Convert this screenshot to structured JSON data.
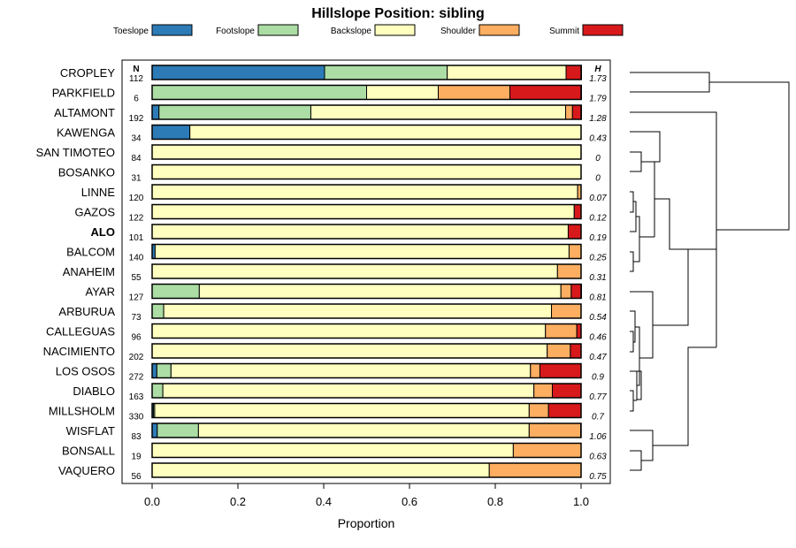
{
  "chart_data": {
    "type": "bar",
    "stacked": true,
    "orientation": "horizontal",
    "title": "Hillslope Position: sibling",
    "xlabel": "Proportion",
    "ylabel": "",
    "xlim": [
      0,
      1
    ],
    "xticks": [
      "0.0",
      "0.2",
      "0.4",
      "0.6",
      "0.8",
      "1.0"
    ],
    "xtick_values": [
      0,
      0.2,
      0.4,
      0.6,
      0.8,
      1.0
    ],
    "legend_position": "top",
    "n_header": "N",
    "h_header": "H",
    "highlighted_category": "ALO",
    "series": [
      {
        "name": "Toeslope",
        "color": "#2C7BB6"
      },
      {
        "name": "Footslope",
        "color": "#ABDDA4"
      },
      {
        "name": "Backslope",
        "color": "#FFFFBF"
      },
      {
        "name": "Shoulder",
        "color": "#FDAE61"
      },
      {
        "name": "Summit",
        "color": "#D7191C"
      }
    ],
    "categories": [
      {
        "name": "CROPLEY",
        "n": "112",
        "h": "1.73",
        "values": [
          0.402,
          0.286,
          0.277,
          0.0,
          0.036
        ]
      },
      {
        "name": "PARKFIELD",
        "n": "6",
        "h": "1.79",
        "values": [
          0.0,
          0.5,
          0.167,
          0.167,
          0.167
        ]
      },
      {
        "name": "ALTAMONT",
        "n": "192",
        "h": "1.28",
        "values": [
          0.016,
          0.354,
          0.594,
          0.016,
          0.021
        ]
      },
      {
        "name": "KAWENGA",
        "n": "34",
        "h": "0.43",
        "values": [
          0.088,
          0.0,
          0.912,
          0.0,
          0.0
        ]
      },
      {
        "name": "SAN TIMOTEO",
        "n": "84",
        "h": "0",
        "values": [
          0.0,
          0.0,
          1.0,
          0.0,
          0.0
        ]
      },
      {
        "name": "BOSANKO",
        "n": "31",
        "h": "0",
        "values": [
          0.0,
          0.0,
          1.0,
          0.0,
          0.0
        ]
      },
      {
        "name": "LINNE",
        "n": "120",
        "h": "0.07",
        "values": [
          0.0,
          0.0,
          0.992,
          0.008,
          0.0
        ]
      },
      {
        "name": "GAZOS",
        "n": "122",
        "h": "0.12",
        "values": [
          0.0,
          0.0,
          0.984,
          0.0,
          0.016
        ]
      },
      {
        "name": "ALO",
        "n": "101",
        "h": "0.19",
        "values": [
          0.0,
          0.0,
          0.97,
          0.0,
          0.03
        ]
      },
      {
        "name": "BALCOM",
        "n": "140",
        "h": "0.25",
        "values": [
          0.007,
          0.0,
          0.965,
          0.028,
          0.0
        ]
      },
      {
        "name": "ANAHEIM",
        "n": "55",
        "h": "0.31",
        "values": [
          0.0,
          0.0,
          0.945,
          0.055,
          0.0
        ]
      },
      {
        "name": "AYAR",
        "n": "127",
        "h": "0.81",
        "values": [
          0.0,
          0.11,
          0.843,
          0.024,
          0.024
        ]
      },
      {
        "name": "ARBURUA",
        "n": "73",
        "h": "0.54",
        "values": [
          0.0,
          0.027,
          0.904,
          0.069,
          0.0
        ]
      },
      {
        "name": "CALLEGUAS",
        "n": "96",
        "h": "0.46",
        "values": [
          0.0,
          0.0,
          0.917,
          0.073,
          0.01
        ]
      },
      {
        "name": "NACIMIENTO",
        "n": "202",
        "h": "0.47",
        "values": [
          0.0,
          0.0,
          0.921,
          0.054,
          0.025
        ]
      },
      {
        "name": "LOS OSOS",
        "n": "272",
        "h": "0.9",
        "values": [
          0.011,
          0.033,
          0.838,
          0.022,
          0.096
        ]
      },
      {
        "name": "DIABLO",
        "n": "163",
        "h": "0.77",
        "values": [
          0.0,
          0.025,
          0.865,
          0.043,
          0.067
        ]
      },
      {
        "name": "MILLSHOLM",
        "n": "330",
        "h": "0.7",
        "values": [
          0.003,
          0.003,
          0.873,
          0.045,
          0.076
        ]
      },
      {
        "name": "WISFLAT",
        "n": "83",
        "h": "1.06",
        "values": [
          0.012,
          0.096,
          0.771,
          0.12,
          0.0
        ]
      },
      {
        "name": "BONSALL",
        "n": "19",
        "h": "0.63",
        "values": [
          0.0,
          0.0,
          0.842,
          0.158,
          0.0
        ]
      },
      {
        "name": "VAQUERO",
        "n": "56",
        "h": "0.75",
        "values": [
          0.0,
          0.0,
          0.786,
          0.214,
          0.0
        ]
      }
    ]
  }
}
